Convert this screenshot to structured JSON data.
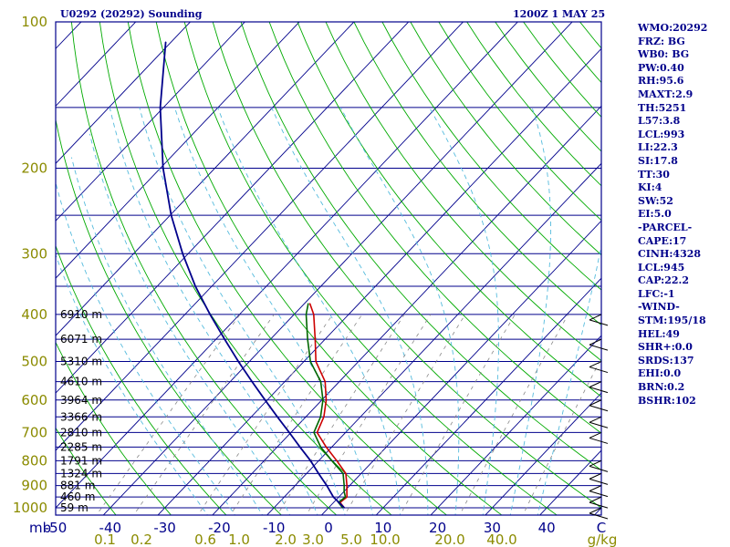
{
  "header": {
    "title": "U0292 (20292) Sounding",
    "datetime": "1200Z  1 MAY 25"
  },
  "indices": [
    "WMO:20292",
    "FRZ: BG",
    "WB0: BG",
    "PW:0.40",
    "RH:95.6",
    "MAXT:2.9",
    "TH:5251",
    "L57:3.8",
    "LCL:993",
    "LI:22.3",
    "SI:17.8",
    "TT:30",
    "KI:4",
    "SW:52",
    "EI:5.0",
    "-PARCEL-",
    "CAPE:17",
    "CINH:4328",
    "LCL:945",
    "CAP:22.2",
    "LFC:-1",
    "-WIND-",
    "STM:195/18",
    "HEL:49",
    "SHR+:0.0",
    "SRDS:137",
    "EHI:0.0",
    "BRN:0.2",
    "BSHR:102"
  ],
  "colors": {
    "frame": "#00008b",
    "isobar": "#00008b",
    "isotherm": "#00008b",
    "dry_adiabat": "#00aa00",
    "moist_adiabat": "#55bbdd",
    "mixing_ratio": "#888888",
    "temperature": "#cc0000",
    "dewpoint": "#006600",
    "parcel": "#00008b",
    "label": "#8b8b00"
  },
  "chart_data": {
    "type": "skew-t log-p sounding",
    "y_unit": "mb",
    "ylim": [
      1000,
      100
    ],
    "xlim": [
      -50,
      50
    ],
    "pressure_ticks": [
      100,
      200,
      300,
      400,
      500,
      600,
      700,
      800,
      900,
      1000
    ],
    "temperature_ticks": [
      -50,
      -40,
      -30,
      -20,
      -10,
      0,
      10,
      20,
      30,
      40,
      50
    ],
    "x_tick_labels": [
      "-50",
      "-40",
      "-30",
      "-20",
      "-10",
      "0",
      "10",
      "20",
      "30",
      "40",
      "C"
    ],
    "y_axis_label": "mb",
    "mixing_ratio_labels": [
      "0.1",
      "0.2",
      "0.6",
      "1.0",
      "2.0",
      "3.0",
      "5.0",
      "10.0",
      "20.0",
      "40.0",
      "g/kg"
    ],
    "height_labels": [
      {
        "p": 400,
        "label": "6910 m"
      },
      {
        "p": 450,
        "label": "6071 m"
      },
      {
        "p": 500,
        "label": "5310 m"
      },
      {
        "p": 550,
        "label": "4610 m"
      },
      {
        "p": 600,
        "label": "3964 m"
      },
      {
        "p": 650,
        "label": "3366 m"
      },
      {
        "p": 700,
        "label": "2810 m"
      },
      {
        "p": 750,
        "label": "2285 m"
      },
      {
        "p": 800,
        "label": "1791 m"
      },
      {
        "p": 850,
        "label": "1324 m"
      },
      {
        "p": 900,
        "label": "881 m"
      },
      {
        "p": 950,
        "label": "460 m"
      },
      {
        "p": 1000,
        "label": "59 m"
      }
    ],
    "series": [
      {
        "name": "Temperature",
        "points": [
          {
            "p": 1000,
            "t": 2.9
          },
          {
            "p": 975,
            "t": 1.2
          },
          {
            "p": 950,
            "t": 1.5
          },
          {
            "p": 925,
            "t": 0.5
          },
          {
            "p": 900,
            "t": -0.5
          },
          {
            "p": 850,
            "t": -2.8
          },
          {
            "p": 800,
            "t": -6.7
          },
          {
            "p": 750,
            "t": -11.0
          },
          {
            "p": 700,
            "t": -15.2
          },
          {
            "p": 650,
            "t": -16.7
          },
          {
            "p": 600,
            "t": -19.2
          },
          {
            "p": 550,
            "t": -22.6
          },
          {
            "p": 500,
            "t": -27.8
          },
          {
            "p": 450,
            "t": -31.8
          },
          {
            "p": 400,
            "t": -36.4
          },
          {
            "p": 380,
            "t": -39.0
          }
        ]
      },
      {
        "name": "Dewpoint",
        "points": [
          {
            "p": 1000,
            "t": 2.6
          },
          {
            "p": 975,
            "t": 0.9
          },
          {
            "p": 950,
            "t": 1.2
          },
          {
            "p": 925,
            "t": 0.0
          },
          {
            "p": 900,
            "t": -1.0
          },
          {
            "p": 850,
            "t": -3.3
          },
          {
            "p": 800,
            "t": -7.6
          },
          {
            "p": 750,
            "t": -12.0
          },
          {
            "p": 700,
            "t": -15.8
          },
          {
            "p": 650,
            "t": -17.3
          },
          {
            "p": 600,
            "t": -19.8
          },
          {
            "p": 550,
            "t": -23.4
          },
          {
            "p": 500,
            "t": -28.8
          },
          {
            "p": 450,
            "t": -33.2
          },
          {
            "p": 400,
            "t": -37.8
          },
          {
            "p": 380,
            "t": -39.3
          }
        ]
      },
      {
        "name": "Parcel",
        "points": [
          {
            "p": 1000,
            "t": 2.9
          },
          {
            "p": 950,
            "t": -1.0
          },
          {
            "p": 900,
            "t": -4.2
          },
          {
            "p": 850,
            "t": -7.8
          },
          {
            "p": 800,
            "t": -11.5
          },
          {
            "p": 750,
            "t": -15.8
          },
          {
            "p": 700,
            "t": -20.3
          },
          {
            "p": 650,
            "t": -25.2
          },
          {
            "p": 600,
            "t": -30.4
          },
          {
            "p": 550,
            "t": -36.0
          },
          {
            "p": 500,
            "t": -42.0
          },
          {
            "p": 450,
            "t": -48.4
          },
          {
            "p": 400,
            "t": -55.4
          },
          {
            "p": 350,
            "t": -63.0
          },
          {
            "p": 300,
            "t": -71.0
          },
          {
            "p": 250,
            "t": -79.8
          },
          {
            "p": 200,
            "t": -89.5
          },
          {
            "p": 150,
            "t": -100.6
          },
          {
            "p": 110,
            "t": -111.0
          }
        ]
      }
    ]
  }
}
